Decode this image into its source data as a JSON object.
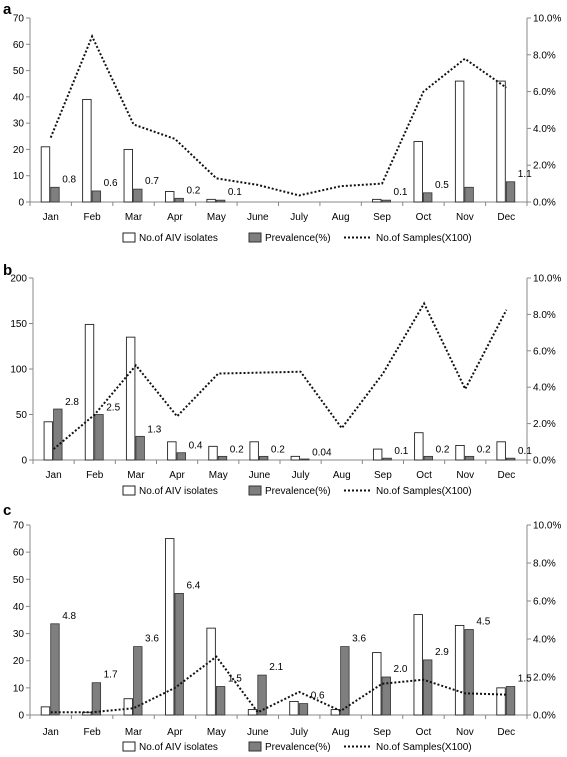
{
  "chart_data": [
    {
      "type": "bar",
      "panel": "a",
      "categories": [
        "Jan",
        "Feb",
        "Mar",
        "Apr",
        "May",
        "June",
        "July",
        "Aug",
        "Sep",
        "Oct",
        "Nov",
        "Dec"
      ],
      "left_ticks": [
        "0",
        "10",
        "20",
        "30",
        "40",
        "50",
        "60",
        "70"
      ],
      "right_ticks": [
        "0.0%",
        "2.0%",
        "4.0%",
        "6.0%",
        "8.0%",
        "10.0%"
      ],
      "ylim_left": [
        0,
        70
      ],
      "ylim_right": [
        0,
        10
      ],
      "series": [
        {
          "name": "No.of AIV isolates",
          "values": [
            21,
            39,
            20,
            4,
            1,
            0,
            0,
            0,
            1,
            23,
            46,
            46
          ]
        },
        {
          "name": "Prevalence(%)",
          "values": [
            0.8,
            0.6,
            0.7,
            0.2,
            0.1,
            null,
            null,
            null,
            0.1,
            0.5,
            0.8,
            1.1
          ]
        },
        {
          "name": "No.of Samples(X100)",
          "values": [
            24.5,
            63,
            29.5,
            24,
            9,
            6.5,
            2.5,
            6,
            7,
            42,
            54.5,
            43.5
          ]
        }
      ],
      "data_labels": [
        "0.8",
        "0.6",
        "0.7",
        "0.2",
        "0.1",
        "",
        "",
        "",
        "0.1",
        "0.5",
        "",
        "1.1"
      ]
    },
    {
      "type": "bar",
      "panel": "b",
      "categories": [
        "Jan",
        "Feb",
        "Mar",
        "Apr",
        "May",
        "June",
        "July",
        "Aug",
        "Sep",
        "Oct",
        "Nov",
        "Dec"
      ],
      "left_ticks": [
        "0",
        "50",
        "100",
        "150",
        "200"
      ],
      "right_ticks": [
        "0.0%",
        "2.0%",
        "4.0%",
        "6.0%",
        "8.0%",
        "10.0%"
      ],
      "ylim_left": [
        0,
        200
      ],
      "ylim_right": [
        0,
        10
      ],
      "series": [
        {
          "name": "No.of AIV isolates",
          "values": [
            42,
            149,
            135,
            20,
            15,
            20,
            4,
            0,
            12,
            30,
            16,
            20
          ]
        },
        {
          "name": "Prevalence(%)",
          "values": [
            2.8,
            2.5,
            1.3,
            0.4,
            0.2,
            0.2,
            0.04,
            null,
            0.1,
            0.2,
            0.2,
            0.1
          ]
        },
        {
          "name": "No.of Samples(X100)",
          "values": [
            12,
            50,
            104,
            48,
            95,
            96,
            97,
            35,
            95,
            172,
            78,
            165
          ]
        }
      ],
      "data_labels": [
        "2.8",
        "2.5",
        "1.3",
        "0.4",
        "0.2",
        "0.2",
        "0.04",
        "",
        "0.1",
        "0.2",
        "0.2",
        "0.1"
      ]
    },
    {
      "type": "bar",
      "panel": "c",
      "categories": [
        "Jan",
        "Feb",
        "Mar",
        "Apr",
        "May",
        "June",
        "July",
        "Aug",
        "Sep",
        "Oct",
        "Nov",
        "Dec"
      ],
      "left_ticks": [
        "0",
        "10",
        "20",
        "30",
        "40",
        "50",
        "60",
        "70"
      ],
      "right_ticks": [
        "0.0%",
        "2.0%",
        "4.0%",
        "6.0%",
        "8.0%",
        "10.0%"
      ],
      "ylim_left": [
        0,
        70
      ],
      "ylim_right": [
        0,
        10
      ],
      "series": [
        {
          "name": "No.of AIV isolates",
          "values": [
            3,
            1,
            6,
            65,
            32,
            2,
            5,
            2,
            23,
            37,
            33,
            10
          ]
        },
        {
          "name": "Prevalence(%)",
          "values": [
            4.8,
            1.7,
            3.6,
            6.4,
            1.5,
            2.1,
            0.6,
            3.6,
            2.0,
            2.9,
            4.5,
            1.5
          ]
        },
        {
          "name": "No.of Samples(X100)",
          "values": [
            1,
            1,
            2.5,
            10,
            21.5,
            1,
            8.5,
            1.5,
            11.5,
            13,
            8,
            7.5
          ]
        }
      ],
      "data_labels": [
        "4.8",
        "1.7",
        "3.6",
        "6.4",
        "1.5",
        "2.1",
        "0.6",
        "3.6",
        "2.0",
        "2.9",
        "4.5",
        "1.5"
      ]
    }
  ]
}
